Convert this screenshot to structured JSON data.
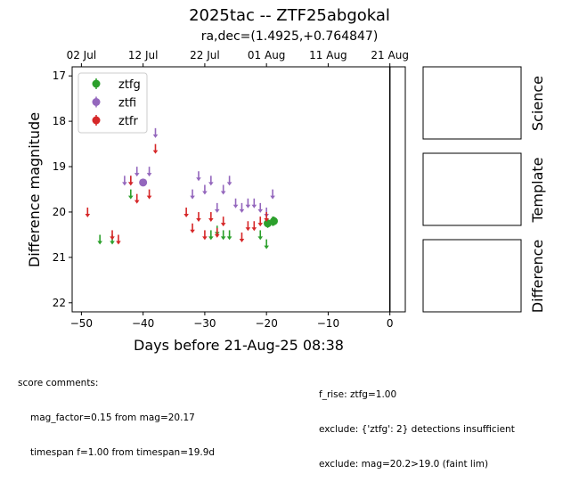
{
  "page_title": "2025tac -- ZTF25abgokal",
  "subtitle": "ra,dec=(1.4925,+0.764847)",
  "colors": {
    "ztfg": "#2ca02c",
    "ztfi": "#9467bd",
    "ztfr": "#d62728"
  },
  "chart_data": {
    "type": "scatter",
    "title": "2025tac -- ZTF25abgokal",
    "subtitle": "ra,dec=(1.4925,+0.764847)",
    "xlabel": "Days before 21-Aug-25 08:38",
    "ylabel": "Difference magnitude",
    "xlim": [
      -51.5,
      2.5
    ],
    "ylim": [
      22.2,
      16.8
    ],
    "y_inverted": true,
    "x_ticks": [
      -50,
      -40,
      -30,
      -20,
      -10,
      0
    ],
    "x_tick_labels": [
      "−50",
      "−40",
      "−30",
      "−20",
      "−10",
      "0"
    ],
    "y_ticks": [
      17,
      18,
      19,
      20,
      21,
      22
    ],
    "y_tick_labels": [
      "17",
      "18",
      "19",
      "20",
      "21",
      "22"
    ],
    "top_axis_ticks": [
      -50,
      -40,
      -30,
      -20,
      -10,
      0
    ],
    "top_axis_labels": [
      "02 Jul",
      "12 Jul",
      "22 Jul",
      "01 Aug",
      "11 Aug",
      "21 Aug"
    ],
    "vertical_line_x": 0,
    "grid": false,
    "legend_position": "top-left",
    "legend": [
      "ztfg",
      "ztfi",
      "ztfr"
    ],
    "series": [
      {
        "name": "ztfg",
        "upper_limits": [
          {
            "x": -47,
            "y": 20.6
          },
          {
            "x": -45,
            "y": 20.6
          },
          {
            "x": -42,
            "y": 19.6
          },
          {
            "x": -29,
            "y": 20.5
          },
          {
            "x": -28,
            "y": 20.4
          },
          {
            "x": -27,
            "y": 20.5
          },
          {
            "x": -26,
            "y": 20.5
          },
          {
            "x": -21,
            "y": 20.5
          },
          {
            "x": -20,
            "y": 20.7
          },
          {
            "x": -19,
            "y": 20.2
          }
        ],
        "detections": [
          {
            "x": -19.8,
            "y": 20.25,
            "err": 0.1
          },
          {
            "x": -18.8,
            "y": 20.2,
            "err": 0.1
          }
        ]
      },
      {
        "name": "ztfi",
        "upper_limits": [
          {
            "x": -43,
            "y": 19.3
          },
          {
            "x": -42,
            "y": 19.3
          },
          {
            "x": -41,
            "y": 19.1
          },
          {
            "x": -39,
            "y": 19.1
          },
          {
            "x": -38,
            "y": 18.25
          },
          {
            "x": -32,
            "y": 19.6
          },
          {
            "x": -31,
            "y": 19.2
          },
          {
            "x": -30,
            "y": 19.5
          },
          {
            "x": -29,
            "y": 19.3
          },
          {
            "x": -28,
            "y": 19.9
          },
          {
            "x": -27,
            "y": 19.5
          },
          {
            "x": -26,
            "y": 19.3
          },
          {
            "x": -25,
            "y": 19.8
          },
          {
            "x": -24,
            "y": 19.9
          },
          {
            "x": -23,
            "y": 19.8
          },
          {
            "x": -22,
            "y": 19.8
          },
          {
            "x": -21,
            "y": 19.9
          },
          {
            "x": -20,
            "y": 20.0
          },
          {
            "x": -19,
            "y": 19.6
          }
        ],
        "detections": [
          {
            "x": -40,
            "y": 19.35,
            "err": 0.06
          }
        ]
      },
      {
        "name": "ztfr",
        "upper_limits": [
          {
            "x": -49,
            "y": 20.0
          },
          {
            "x": -45,
            "y": 20.5
          },
          {
            "x": -44,
            "y": 20.6
          },
          {
            "x": -42,
            "y": 19.3
          },
          {
            "x": -41,
            "y": 19.7
          },
          {
            "x": -39,
            "y": 19.6
          },
          {
            "x": -38,
            "y": 18.6
          },
          {
            "x": -33,
            "y": 20.0
          },
          {
            "x": -32,
            "y": 20.35
          },
          {
            "x": -31,
            "y": 20.1
          },
          {
            "x": -30,
            "y": 20.5
          },
          {
            "x": -29,
            "y": 20.1
          },
          {
            "x": -28,
            "y": 20.45
          },
          {
            "x": -27,
            "y": 20.2
          },
          {
            "x": -24,
            "y": 20.55
          },
          {
            "x": -23,
            "y": 20.3
          },
          {
            "x": -22,
            "y": 20.3
          },
          {
            "x": -21,
            "y": 20.2
          },
          {
            "x": -20,
            "y": 20.1
          }
        ],
        "detections": []
      }
    ]
  },
  "side_panels": [
    "Science",
    "Template",
    "Difference"
  ],
  "comments_left": {
    "header": "score comments:",
    "lines": [
      "mag_factor=0.15 from mag=20.17",
      "timespan f=1.00 from timespan=19.9d"
    ]
  },
  "comments_right": {
    "lines": [
      "f_rise: ztfg=1.00",
      "exclude: {'ztfg': 2} detections insufficient",
      "exclude: mag=20.2>19.0 (faint lim)"
    ]
  }
}
